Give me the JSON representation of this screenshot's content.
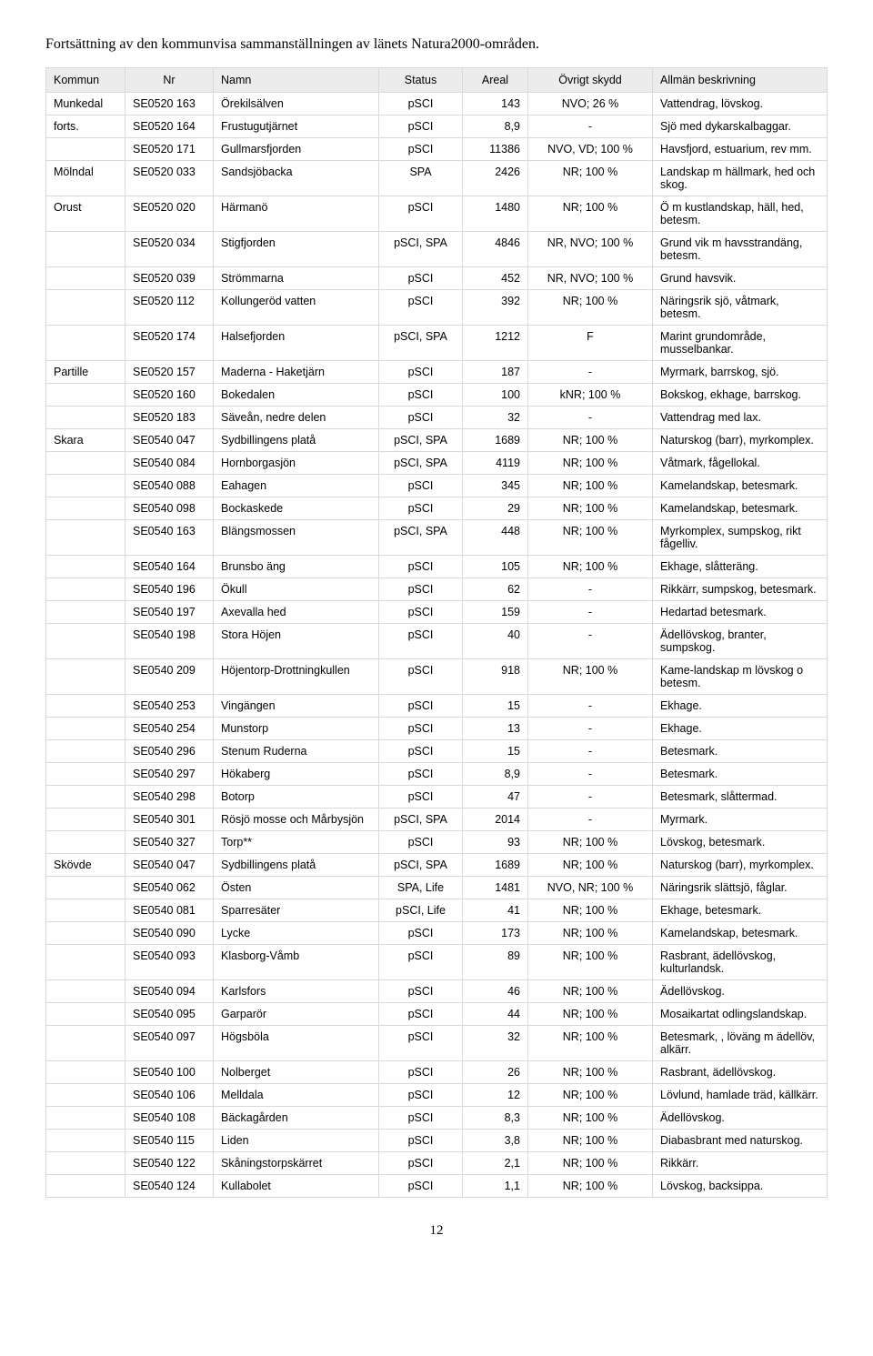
{
  "title": "Fortsättning av den kommunvisa sammanställningen av länets Natura2000-områden.",
  "headers": {
    "kommun": "Kommun",
    "nr": "Nr",
    "namn": "Namn",
    "status": "Status",
    "areal": "Areal",
    "skydd": "Övrigt skydd",
    "beskr": "Allmän beskrivning"
  },
  "rows": [
    {
      "kommun": "Munkedal",
      "nr": "SE0520 163",
      "namn": "Örekilsälven",
      "status": "pSCI",
      "areal": "143",
      "skydd": "NVO; 26 %",
      "beskr": "Vattendrag, lövskog."
    },
    {
      "kommun": "forts.",
      "nr": "SE0520 164",
      "namn": "Frustugutjärnet",
      "status": "pSCI",
      "areal": "8,9",
      "skydd": "-",
      "beskr": "Sjö med dykarskalbaggar."
    },
    {
      "kommun": "",
      "nr": "SE0520 171",
      "namn": "Gullmarsfjorden",
      "status": "pSCI",
      "areal": "11386",
      "skydd": "NVO, VD; 100 %",
      "beskr": "Havsfjord, estuarium, rev mm."
    },
    {
      "kommun": "Mölndal",
      "nr": "SE0520 033",
      "namn": "Sandsjöbacka",
      "status": "SPA",
      "areal": "2426",
      "skydd": "NR; 100 %",
      "beskr": "Landskap m hällmark, hed och skog."
    },
    {
      "kommun": "Orust",
      "nr": "SE0520 020",
      "namn": "Härmanö",
      "status": "pSCI",
      "areal": "1480",
      "skydd": "NR; 100 %",
      "beskr": "Ö m kustlandskap, häll, hed, betesm."
    },
    {
      "kommun": "",
      "nr": "SE0520 034",
      "namn": "Stigfjorden",
      "status": "pSCI, SPA",
      "areal": "4846",
      "skydd": "NR, NVO; 100 %",
      "beskr": "Grund vik m havsstrandäng, betesm."
    },
    {
      "kommun": "",
      "nr": "SE0520 039",
      "namn": "Strömmarna",
      "status": "pSCI",
      "areal": "452",
      "skydd": "NR, NVO; 100 %",
      "beskr": "Grund havsvik."
    },
    {
      "kommun": "",
      "nr": "SE0520 112",
      "namn": "Kollungeröd vatten",
      "status": "pSCI",
      "areal": "392",
      "skydd": "NR; 100 %",
      "beskr": "Näringsrik sjö, våtmark, betesm."
    },
    {
      "kommun": "",
      "nr": "SE0520 174",
      "namn": "Halsefjorden",
      "status": "pSCI, SPA",
      "areal": "1212",
      "skydd": "F",
      "beskr": "Marint grundområde, musselbankar."
    },
    {
      "kommun": "Partille",
      "nr": "SE0520 157",
      "namn": "Maderna - Haketjärn",
      "status": "pSCI",
      "areal": "187",
      "skydd": "-",
      "beskr": "Myrmark, barrskog, sjö."
    },
    {
      "kommun": "",
      "nr": "SE0520 160",
      "namn": "Bokedalen",
      "status": "pSCI",
      "areal": "100",
      "skydd": "kNR; 100 %",
      "beskr": "Bokskog, ekhage, barrskog."
    },
    {
      "kommun": "",
      "nr": "SE0520 183",
      "namn": "Säveån, nedre delen",
      "status": "pSCI",
      "areal": "32",
      "skydd": "-",
      "beskr": "Vattendrag med lax."
    },
    {
      "kommun": "Skara",
      "nr": "SE0540 047",
      "namn": "Sydbillingens platå",
      "status": "pSCI, SPA",
      "areal": "1689",
      "skydd": "NR; 100 %",
      "beskr": "Naturskog (barr), myrkomplex."
    },
    {
      "kommun": "",
      "nr": "SE0540 084",
      "namn": "Hornborgasjön",
      "status": "pSCI, SPA",
      "areal": "4119",
      "skydd": "NR; 100 %",
      "beskr": "Våtmark, fågellokal."
    },
    {
      "kommun": "",
      "nr": "SE0540 088",
      "namn": "Eahagen",
      "status": "pSCI",
      "areal": "345",
      "skydd": "NR; 100 %",
      "beskr": "Kamelandskap, betesmark."
    },
    {
      "kommun": "",
      "nr": "SE0540 098",
      "namn": "Bockaskede",
      "status": "pSCI",
      "areal": "29",
      "skydd": "NR; 100 %",
      "beskr": "Kamelandskap, betesmark."
    },
    {
      "kommun": "",
      "nr": "SE0540 163",
      "namn": "Blängsmossen",
      "status": "pSCI, SPA",
      "areal": "448",
      "skydd": "NR; 100 %",
      "beskr": "Myrkomplex, sumpskog, rikt fågelliv."
    },
    {
      "kommun": "",
      "nr": "SE0540 164",
      "namn": "Brunsbo äng",
      "status": "pSCI",
      "areal": "105",
      "skydd": "NR; 100 %",
      "beskr": "Ekhage, slåtteräng."
    },
    {
      "kommun": "",
      "nr": "SE0540 196",
      "namn": "Ökull",
      "status": "pSCI",
      "areal": "62",
      "skydd": "-",
      "beskr": "Rikkärr, sumpskog, betesmark."
    },
    {
      "kommun": "",
      "nr": "SE0540 197",
      "namn": "Axevalla hed",
      "status": "pSCI",
      "areal": "159",
      "skydd": "-",
      "beskr": "Hedartad betesmark."
    },
    {
      "kommun": "",
      "nr": "SE0540 198",
      "namn": "Stora Höjen",
      "status": "pSCI",
      "areal": "40",
      "skydd": "-",
      "beskr": "Ädellövskog, branter, sumpskog."
    },
    {
      "kommun": "",
      "nr": "SE0540 209",
      "namn": "Höjentorp-Drottningkullen",
      "status": "pSCI",
      "areal": "918",
      "skydd": "NR; 100 %",
      "beskr": "Kame-landskap m lövskog o betesm."
    },
    {
      "kommun": "",
      "nr": "SE0540 253",
      "namn": "Vingängen",
      "status": "pSCI",
      "areal": "15",
      "skydd": "-",
      "beskr": "Ekhage."
    },
    {
      "kommun": "",
      "nr": "SE0540 254",
      "namn": "Munstorp",
      "status": "pSCI",
      "areal": "13",
      "skydd": "-",
      "beskr": "Ekhage."
    },
    {
      "kommun": "",
      "nr": "SE0540 296",
      "namn": "Stenum Ruderna",
      "status": "pSCI",
      "areal": "15",
      "skydd": "-",
      "beskr": "Betesmark."
    },
    {
      "kommun": "",
      "nr": "SE0540 297",
      "namn": "Hökaberg",
      "status": "pSCI",
      "areal": "8,9",
      "skydd": "-",
      "beskr": "Betesmark."
    },
    {
      "kommun": "",
      "nr": "SE0540 298",
      "namn": "Botorp",
      "status": "pSCI",
      "areal": "47",
      "skydd": "-",
      "beskr": "Betesmark, slåttermad."
    },
    {
      "kommun": "",
      "nr": "SE0540 301",
      "namn": "Rösjö mosse och Mårbysjön",
      "status": "pSCI, SPA",
      "areal": "2014",
      "skydd": "-",
      "beskr": "Myrmark."
    },
    {
      "kommun": "",
      "nr": "SE0540 327",
      "namn": "Torp**",
      "status": "pSCI",
      "areal": "93",
      "skydd": "NR; 100 %",
      "beskr": "Lövskog, betesmark."
    },
    {
      "kommun": "Skövde",
      "nr": "SE0540 047",
      "namn": "Sydbillingens platå",
      "status": "pSCI, SPA",
      "areal": "1689",
      "skydd": "NR; 100 %",
      "beskr": "Naturskog (barr), myrkomplex."
    },
    {
      "kommun": "",
      "nr": "SE0540 062",
      "namn": "Östen",
      "status": "SPA, Life",
      "areal": "1481",
      "skydd": "NVO, NR; 100 %",
      "beskr": "Näringsrik slättsjö, fåglar."
    },
    {
      "kommun": "",
      "nr": "SE0540 081",
      "namn": "Sparresäter",
      "status": "pSCI, Life",
      "areal": "41",
      "skydd": "NR; 100 %",
      "beskr": "Ekhage, betesmark."
    },
    {
      "kommun": "",
      "nr": "SE0540 090",
      "namn": "Lycke",
      "status": "pSCI",
      "areal": "173",
      "skydd": "NR; 100 %",
      "beskr": "Kamelandskap, betesmark."
    },
    {
      "kommun": "",
      "nr": "SE0540 093",
      "namn": "Klasborg-Våmb",
      "status": "pSCI",
      "areal": "89",
      "skydd": "NR; 100 %",
      "beskr": "Rasbrant, ädellövskog, kulturlandsk."
    },
    {
      "kommun": "",
      "nr": "SE0540 094",
      "namn": "Karlsfors",
      "status": "pSCI",
      "areal": "46",
      "skydd": "NR; 100 %",
      "beskr": "Ädellövskog."
    },
    {
      "kommun": "",
      "nr": "SE0540 095",
      "namn": "Garparör",
      "status": "pSCI",
      "areal": "44",
      "skydd": "NR; 100 %",
      "beskr": "Mosaikartat odlingslandskap."
    },
    {
      "kommun": "",
      "nr": "SE0540 097",
      "namn": "Högsböla",
      "status": "pSCI",
      "areal": "32",
      "skydd": "NR; 100 %",
      "beskr": "Betesmark, , löväng m ädellöv, alkärr."
    },
    {
      "kommun": "",
      "nr": "SE0540 100",
      "namn": "Nolberget",
      "status": "pSCI",
      "areal": "26",
      "skydd": "NR; 100 %",
      "beskr": "Rasbrant, ädellövskog."
    },
    {
      "kommun": "",
      "nr": "SE0540 106",
      "namn": "Melldala",
      "status": "pSCI",
      "areal": "12",
      "skydd": "NR; 100 %",
      "beskr": "Lövlund, hamlade träd, källkärr."
    },
    {
      "kommun": "",
      "nr": "SE0540 108",
      "namn": "Bäckagården",
      "status": "pSCI",
      "areal": "8,3",
      "skydd": "NR; 100 %",
      "beskr": "Ädellövskog."
    },
    {
      "kommun": "",
      "nr": "SE0540 115",
      "namn": "Liden",
      "status": "pSCI",
      "areal": "3,8",
      "skydd": "NR; 100 %",
      "beskr": "Diabasbrant med naturskog."
    },
    {
      "kommun": "",
      "nr": "SE0540 122",
      "namn": "Skåningstorpskärret",
      "status": "pSCI",
      "areal": "2,1",
      "skydd": "NR; 100 %",
      "beskr": "Rikkärr."
    },
    {
      "kommun": "",
      "nr": "SE0540 124",
      "namn": "Kullabolet",
      "status": "pSCI",
      "areal": "1,1",
      "skydd": "NR; 100 %",
      "beskr": "Lövskog, backsippa."
    }
  ],
  "pageNumber": "12"
}
